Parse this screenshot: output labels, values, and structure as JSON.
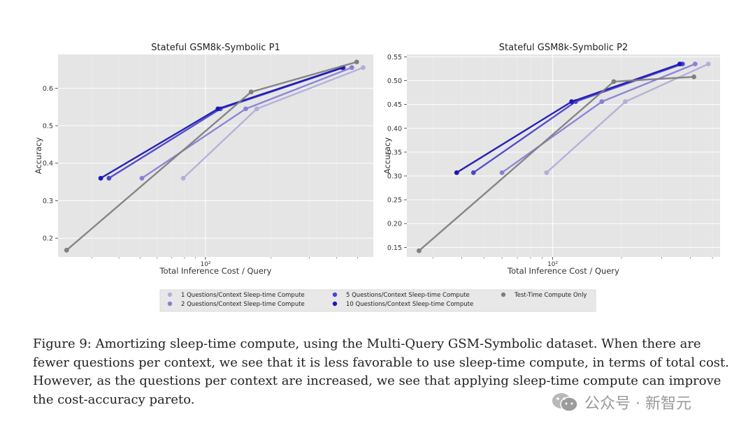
{
  "colors": {
    "s1": "#b3aed8",
    "s2": "#8781d6",
    "s5": "#4c47c9",
    "s10": "#1c18b3",
    "test": "#7f7f7f",
    "plot_bg": "#e5e5e5",
    "grid": "#ffffff"
  },
  "chart_data": [
    {
      "type": "line",
      "title": "Stateful GSM8k-Symbolic P1",
      "xlabel": "Total Inference Cost / Query",
      "ylabel": "Accuracy",
      "xscale": "log",
      "xlim": [
        21,
        590
      ],
      "ylim": [
        0.15,
        0.69
      ],
      "xticks": [
        100
      ],
      "xtick_labels": [
        "10²"
      ],
      "yticks": [
        0.2,
        0.3,
        0.4,
        0.5,
        0.6
      ],
      "ytick_labels": [
        "0.2",
        "0.3",
        "0.4",
        "0.5",
        "0.6"
      ],
      "grid": true,
      "series": [
        {
          "name": "1 Questions/Context Sleep-time Compute",
          "color_key": "s1",
          "x": [
            79,
            172,
            530
          ],
          "y": [
            0.36,
            0.545,
            0.655
          ]
        },
        {
          "name": "2 Questions/Context Sleep-time Compute",
          "color_key": "s2",
          "x": [
            51,
            153,
            470
          ],
          "y": [
            0.36,
            0.545,
            0.655
          ]
        },
        {
          "name": "5 Questions/Context Sleep-time Compute",
          "color_key": "s5",
          "x": [
            36,
            117,
            430
          ],
          "y": [
            0.36,
            0.545,
            0.655
          ]
        },
        {
          "name": "10 Questions/Context Sleep-time Compute",
          "color_key": "s10",
          "x": [
            33,
            114,
            425
          ],
          "y": [
            0.36,
            0.545,
            0.655
          ]
        },
        {
          "name": "Test-Time Compute Only",
          "color_key": "test",
          "x": [
            23,
            162,
            495
          ],
          "y": [
            0.168,
            0.59,
            0.67
          ]
        }
      ]
    },
    {
      "type": "line",
      "title": "Stateful GSM8k-Symbolic P2",
      "xlabel": "Total Inference Cost / Query",
      "ylabel": "Accuracy",
      "xscale": "log",
      "xlim": [
        23,
        540
      ],
      "ylim": [
        0.13,
        0.555
      ],
      "xticks": [
        100
      ],
      "xtick_labels": [
        "10²"
      ],
      "yticks": [
        0.15,
        0.2,
        0.25,
        0.3,
        0.35,
        0.4,
        0.45,
        0.5,
        0.55
      ],
      "ytick_labels": [
        "0.15",
        "0.20",
        "0.25",
        "0.30",
        "0.35",
        "0.40",
        "0.45",
        "0.50",
        "0.55"
      ],
      "grid": true,
      "series": [
        {
          "name": "1 Questions/Context Sleep-time Compute",
          "color_key": "s1",
          "x": [
            94,
            208,
            480
          ],
          "y": [
            0.307,
            0.456,
            0.535
          ]
        },
        {
          "name": "2 Questions/Context Sleep-time Compute",
          "color_key": "s2",
          "x": [
            60,
            164,
            420
          ],
          "y": [
            0.307,
            0.456,
            0.535
          ]
        },
        {
          "name": "5 Questions/Context Sleep-time Compute",
          "color_key": "s5",
          "x": [
            45,
            126,
            370
          ],
          "y": [
            0.307,
            0.456,
            0.535
          ]
        },
        {
          "name": "10 Questions/Context Sleep-time Compute",
          "color_key": "s10",
          "x": [
            38,
            121,
            360
          ],
          "y": [
            0.307,
            0.456,
            0.535
          ]
        },
        {
          "name": "Test-Time Compute Only",
          "color_key": "test",
          "x": [
            26,
            185,
            415
          ],
          "y": [
            0.143,
            0.498,
            0.508
          ]
        }
      ]
    }
  ],
  "legend": [
    {
      "label": "1 Questions/Context Sleep-time Compute",
      "color_key": "s1"
    },
    {
      "label": "2 Questions/Context Sleep-time Compute",
      "color_key": "s2"
    },
    {
      "label": "5 Questions/Context Sleep-time Compute",
      "color_key": "s5"
    },
    {
      "label": "10 Questions/Context Sleep-time Compute",
      "color_key": "s10"
    },
    {
      "label": "Test-Time Compute Only",
      "color_key": "test"
    }
  ],
  "caption": "Figure 9: Amortizing sleep-time compute, using the Multi-Query GSM-Symbolic dataset. When there are fewer questions per context, we see that it is less favorable to use sleep-time compute, in terms of total cost. However, as the questions per context are increased, we see that applying sleep-time compute can improve the cost-accuracy pareto.",
  "watermark": {
    "text": "公众号 · 新智元",
    "icon": "wechat-icon"
  }
}
